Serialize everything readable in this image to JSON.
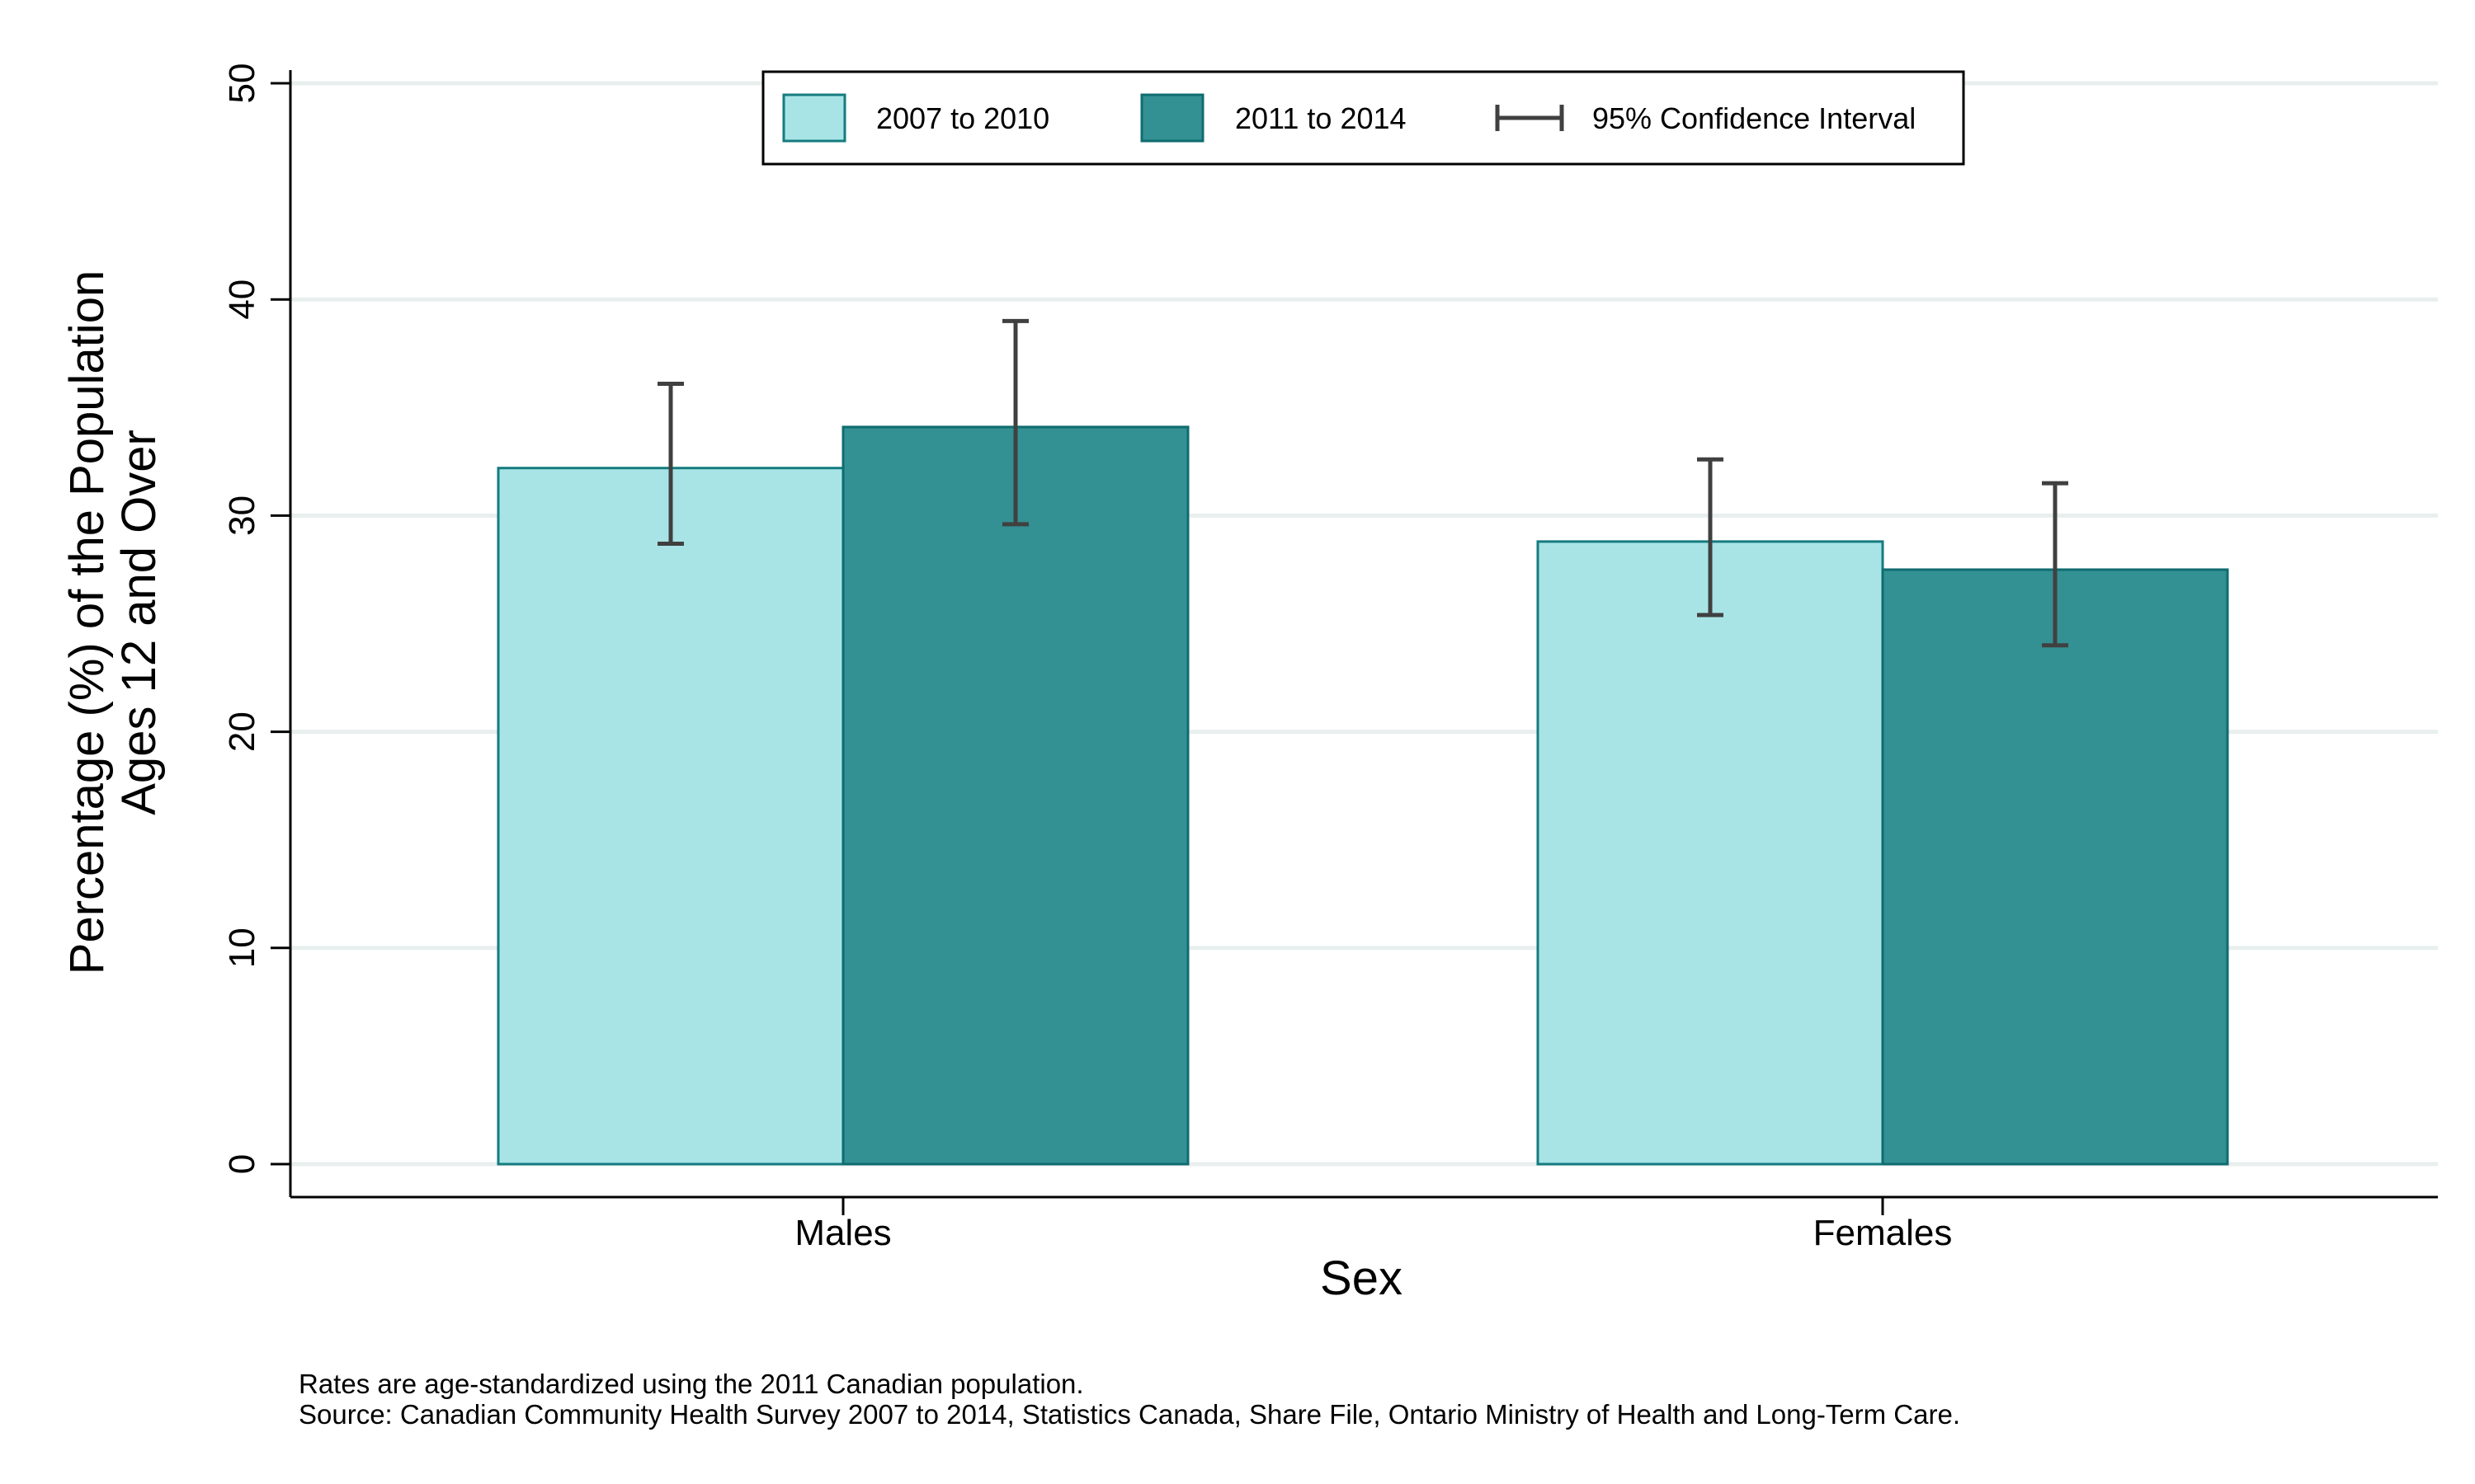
{
  "chart_data": {
    "type": "bar",
    "categories": [
      "Males",
      "Females"
    ],
    "series": [
      {
        "name": "2007 to 2010",
        "values": [
          32.2,
          28.8
        ],
        "ci_low": [
          28.7,
          25.4
        ],
        "ci_high": [
          36.1,
          32.6
        ],
        "color": "#a8e4e6",
        "stroke": "#157b80"
      },
      {
        "name": "2011 to 2014",
        "values": [
          34.1,
          27.5
        ],
        "ci_low": [
          29.6,
          24.0
        ],
        "ci_high": [
          39.0,
          31.5
        ],
        "color": "#339093",
        "stroke": "#0f6c70"
      }
    ],
    "ci_label": "95% Confidence Interval",
    "xlabel": "Sex",
    "ylabel_lines": [
      "Percentage (%) of the Population",
      "Ages 12 and Over"
    ],
    "yticks": [
      0,
      10,
      20,
      30,
      40,
      50
    ],
    "ylim": [
      0,
      50
    ],
    "grid": true,
    "legend_position": "top-center",
    "notes": [
      "Rates are age-standardized using the 2011 Canadian population.",
      "Source: Canadian Community Health Survey 2007 to 2014, Statistics Canada, Share File, Ontario Ministry of Health and Long-Term Care."
    ],
    "colors": {
      "grid": "#e8efee",
      "axis": "#000000",
      "errorbar": "#404040"
    }
  }
}
